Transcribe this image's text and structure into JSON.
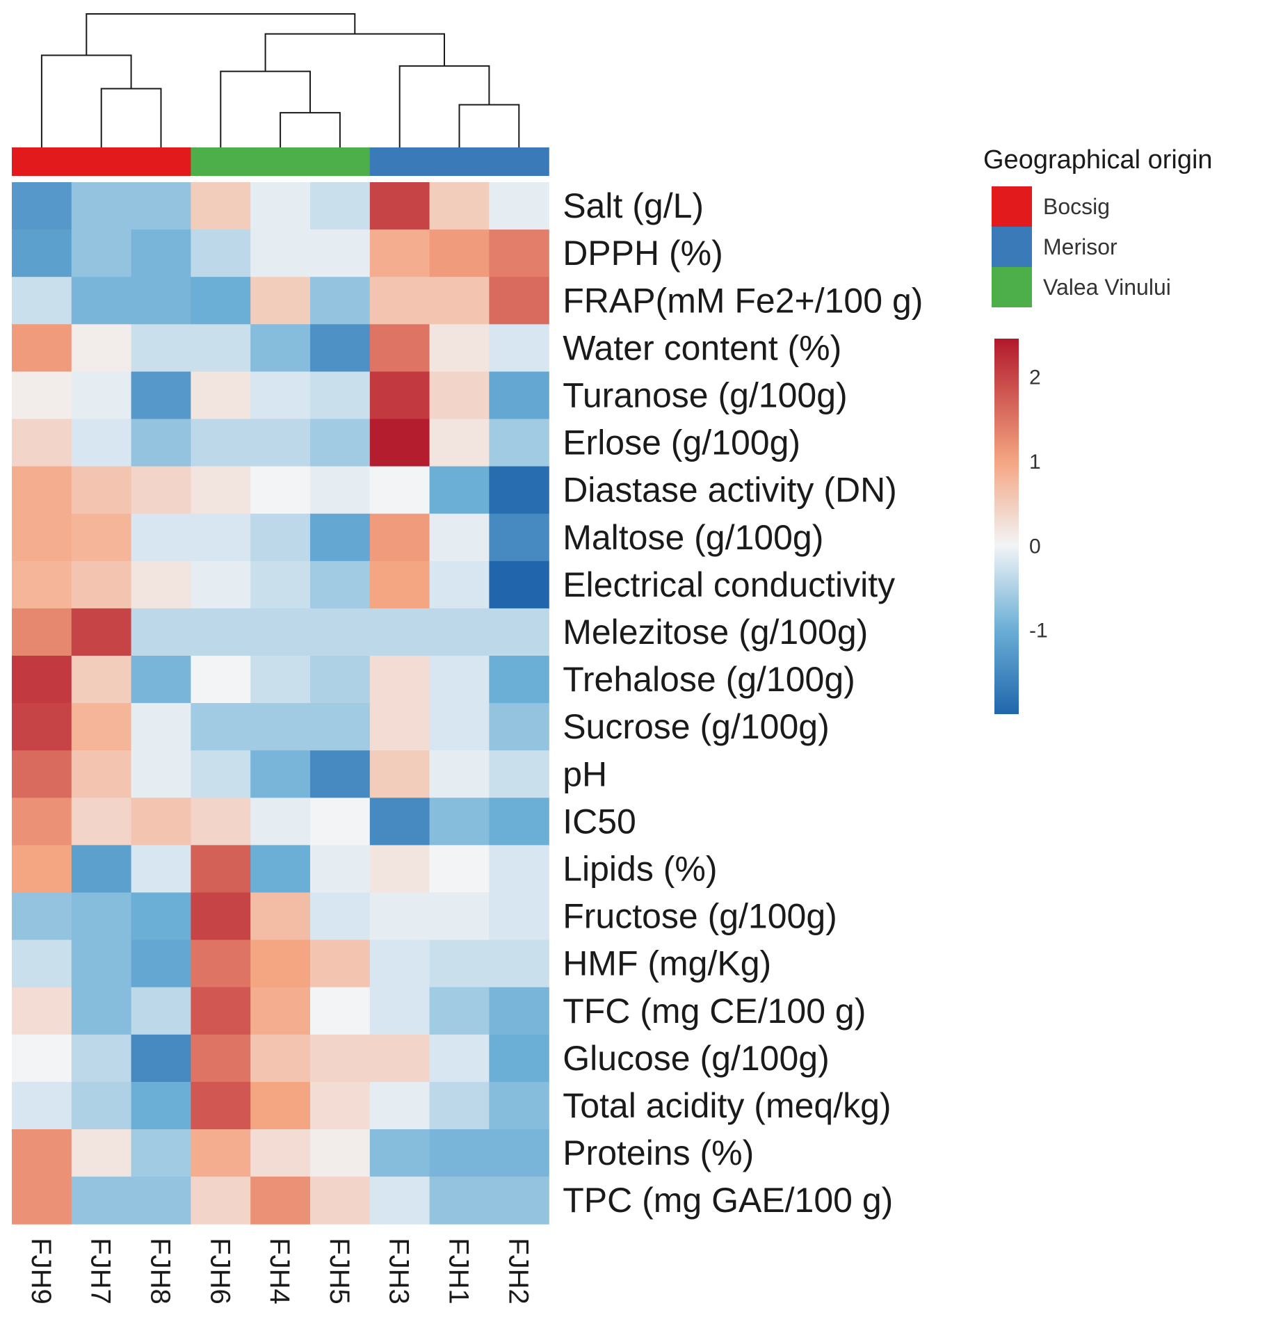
{
  "chart_data": {
    "type": "heatmap",
    "title": "",
    "rows": [
      "Salt  (g/L)",
      "DPPH (%)",
      "FRAP(mM Fe2+/100 g)",
      "Water content (%)",
      "Turanose (g/100g)",
      "Erlose (g/100g)",
      "Diastase activity (DN)",
      "Maltose (g/100g)",
      "Electrical conductivity",
      "Melezitose (g/100g)",
      "Trehalose (g/100g)",
      "Sucrose (g/100g)",
      "pH",
      "IC50",
      "Lipids (%)",
      "Fructose (g/100g)",
      "HMF (mg/Kg)",
      "TFC (mg CE/100 g)",
      "Glucose (g/100g)",
      "Total acidity (meq/kg)",
      "Proteins (%)",
      "TPC (mg GAE/100 g)"
    ],
    "columns": [
      "FJH9",
      "FJH7",
      "FJH8",
      "FJH6",
      "FJH4",
      "FJH5",
      "FJH3",
      "FJH1",
      "FJH2"
    ],
    "column_groups": [
      "Bocsig",
      "Bocsig",
      "Bocsig",
      "Valea Vinului",
      "Valea Vinului",
      "Valea Vinului",
      "Merisor",
      "Merisor",
      "Merisor"
    ],
    "values": [
      [
        -1.3,
        -0.7,
        -0.7,
        0.5,
        -0.1,
        -0.3,
        2.0,
        0.5,
        -0.1
      ],
      [
        -1.2,
        -0.7,
        -0.9,
        -0.4,
        -0.1,
        -0.1,
        0.9,
        1.1,
        1.4
      ],
      [
        -0.3,
        -0.9,
        -0.9,
        -1.0,
        0.5,
        -0.7,
        0.6,
        0.6,
        1.6
      ],
      [
        1.1,
        0.1,
        -0.3,
        -0.3,
        -0.8,
        -1.4,
        1.5,
        0.2,
        -0.2
      ],
      [
        0.1,
        -0.1,
        -1.3,
        0.2,
        -0.2,
        -0.3,
        2.1,
        0.4,
        -1.1
      ],
      [
        0.4,
        -0.2,
        -0.7,
        -0.4,
        -0.4,
        -0.6,
        2.4,
        0.2,
        -0.6
      ],
      [
        0.9,
        0.6,
        0.4,
        0.2,
        0.0,
        -0.1,
        0.0,
        -1.0,
        -1.9
      ],
      [
        0.9,
        0.8,
        -0.2,
        -0.2,
        -0.4,
        -1.1,
        1.1,
        -0.1,
        -1.5
      ],
      [
        0.8,
        0.6,
        0.2,
        -0.1,
        -0.3,
        -0.6,
        1.0,
        -0.2,
        -2.0
      ],
      [
        1.3,
        2.0,
        -0.4,
        -0.4,
        -0.4,
        -0.4,
        -0.4,
        -0.4,
        -0.4
      ],
      [
        2.1,
        0.5,
        -0.9,
        0.0,
        -0.3,
        -0.5,
        0.3,
        -0.2,
        -1.0
      ],
      [
        2.0,
        0.8,
        -0.1,
        -0.6,
        -0.6,
        -0.6,
        0.3,
        -0.2,
        -0.7
      ],
      [
        1.6,
        0.6,
        -0.1,
        -0.3,
        -0.9,
        -1.5,
        0.5,
        -0.1,
        -0.3
      ],
      [
        1.2,
        0.4,
        0.6,
        0.4,
        -0.1,
        0.0,
        -1.5,
        -0.8,
        -1.0
      ],
      [
        1.0,
        -1.2,
        -0.2,
        1.7,
        -1.0,
        -0.1,
        0.2,
        0.0,
        -0.2
      ],
      [
        -0.7,
        -0.8,
        -1.0,
        2.0,
        0.7,
        -0.2,
        -0.1,
        -0.1,
        -0.2
      ],
      [
        -0.3,
        -0.8,
        -1.1,
        1.5,
        1.0,
        0.6,
        -0.2,
        -0.3,
        -0.3
      ],
      [
        0.3,
        -0.8,
        -0.4,
        1.8,
        0.9,
        0.0,
        -0.2,
        -0.6,
        -0.9
      ],
      [
        0.0,
        -0.4,
        -1.5,
        1.5,
        0.6,
        0.4,
        0.4,
        -0.2,
        -1.0
      ],
      [
        -0.2,
        -0.5,
        -1.0,
        1.8,
        1.0,
        0.3,
        -0.1,
        -0.4,
        -0.8
      ],
      [
        1.2,
        0.2,
        -0.6,
        0.9,
        0.3,
        0.1,
        -0.8,
        -0.9,
        -0.9
      ],
      [
        1.2,
        -0.7,
        -0.7,
        0.4,
        1.2,
        0.4,
        -0.2,
        -0.7,
        -0.7
      ]
    ],
    "color_scale": {
      "stops": [
        {
          "value": -2.0,
          "color": "#2166ac"
        },
        {
          "value": -1.0,
          "color": "#6baed6"
        },
        {
          "value": 0.0,
          "color": "#f2f4f6"
        },
        {
          "value": 1.0,
          "color": "#f4a582"
        },
        {
          "value": 2.45,
          "color": "#b2182b"
        }
      ],
      "ticks": [
        2,
        1,
        0,
        -1
      ],
      "ticks_label": [
        "2",
        "1",
        "0",
        "-1"
      ],
      "range": [
        -2.0,
        2.45
      ]
    },
    "legend": {
      "title": "Geographical origin",
      "entries": [
        {
          "label": "Bocsig",
          "color": "#e31a1c"
        },
        {
          "label": "Merisor",
          "color": "#3a7ab8"
        },
        {
          "label": "Valea Vinului",
          "color": "#4daf4a"
        }
      ],
      "placement": "right"
    },
    "column_dendrogram": {
      "merges": [
        {
          "left": "FJH4",
          "right": "FJH5",
          "height": 0.26
        },
        {
          "left": "FJH1",
          "right": "FJH2",
          "height": 0.32
        },
        {
          "left": "FJH7",
          "right": "FJH8",
          "height": 0.44
        },
        {
          "left": "FJH6",
          "right": "FJH4+FJH5",
          "height": 0.57
        },
        {
          "left": "FJH3",
          "right": "FJH1+FJH2",
          "height": 0.61
        },
        {
          "left": "FJH9",
          "right": "FJH7+FJH8",
          "height": 0.69
        },
        {
          "left": "FJH6+FJH4+FJH5",
          "right": "FJH3+FJH1+FJH2",
          "height": 0.85
        },
        {
          "left": "FJH9+FJH7+FJH8",
          "right": "FJH6+FJH4+FJH5+FJH3+FJH1+FJH2",
          "height": 1.0
        }
      ]
    }
  }
}
